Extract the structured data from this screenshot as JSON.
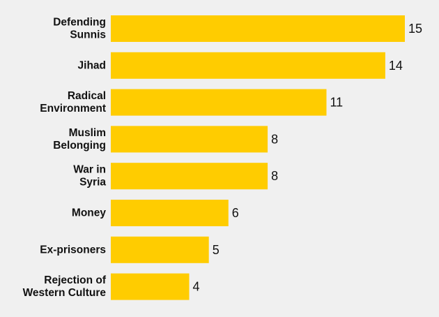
{
  "chart_data": {
    "type": "bar",
    "orientation": "horizontal",
    "categories": [
      [
        "Defending",
        "Sunnis"
      ],
      [
        "Jihad"
      ],
      [
        "Radical",
        "Environment"
      ],
      [
        "Muslim",
        "Belonging"
      ],
      [
        "War in",
        "Syria"
      ],
      [
        "Money"
      ],
      [
        "Ex-prisoners"
      ],
      [
        "Rejection of",
        "Western Culture"
      ]
    ],
    "values": [
      15,
      14,
      11,
      8,
      8,
      6,
      5,
      4
    ],
    "value_labels": [
      "15",
      "14",
      "11",
      "8",
      "8",
      "6",
      "5",
      "4"
    ],
    "title": "",
    "xlabel": "",
    "ylabel": "",
    "xlim": [
      0,
      15
    ],
    "grid": false,
    "bar_color": "#ffcc00"
  }
}
